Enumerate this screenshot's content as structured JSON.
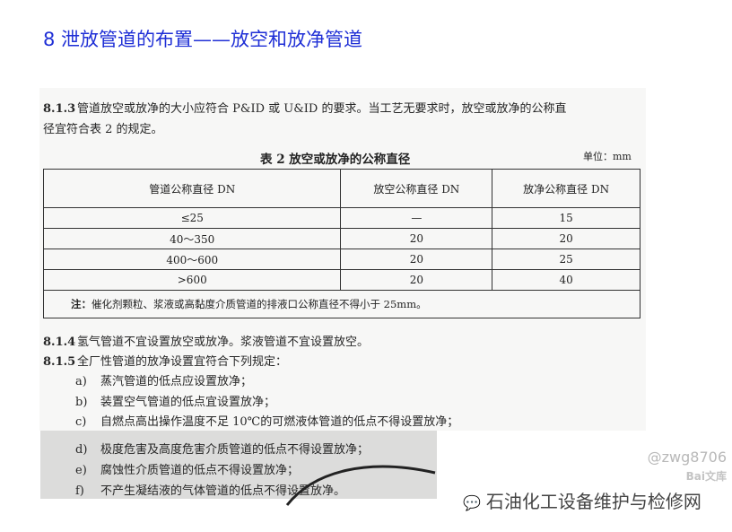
{
  "title": "8  泄放管道的布置——放空和放净管道",
  "clause_813": {
    "num": "8.1.3",
    "line1": "管道放空或放净的大小应符合 P&ID 或 U&ID 的要求。当工艺无要求时，放空或放净的公称直",
    "line2": "径宜符合表 2 的规定。"
  },
  "table": {
    "caption": "表 2   放空或放净的公称直径",
    "unit": "单位：mm",
    "headers": [
      "管道公称直径 DN",
      "放空公称直径 DN",
      "放净公称直径 DN"
    ],
    "rows": [
      [
        "≤25",
        "—",
        "15"
      ],
      [
        "40～350",
        "20",
        "20"
      ],
      [
        "400～600",
        "20",
        "25"
      ],
      [
        ">600",
        "20",
        "40"
      ]
    ],
    "note_label": "注：",
    "note": "催化剂颗粒、浆液或高黏度介质管道的排液口公称直径不得小于 25mm。"
  },
  "clause_814": {
    "num": "8.1.4",
    "text": "氢气管道不宜设置放空或放净。浆液管道不宜设置放空。"
  },
  "clause_815": {
    "num": "8.1.5",
    "text": "全厂性管道的放净设置宜符合下列规定："
  },
  "items": [
    {
      "label": "a)",
      "text": "蒸汽管道的低点应设置放净；"
    },
    {
      "label": "b)",
      "text": "装置空气管道的低点宜设置放净；"
    },
    {
      "label": "c)",
      "text": "自燃点高出操作温度不足 10℃的可燃液体管道的低点不得设置放净；"
    },
    {
      "label": "d)",
      "text": "极度危害及高度危害介质管道的低点不得设置放净；"
    },
    {
      "label": "e)",
      "text": "腐蚀性介质管道的低点不得设置放净；"
    },
    {
      "label": "f)",
      "text": "不产生凝结液的气体管道的低点不得设置放净。"
    }
  ],
  "watermark": {
    "user": "@zwg8706",
    "baidu": "Bai文库",
    "wechat": "石油化工设备维护与检修网",
    "wechat_icon": "wechat-icon"
  },
  "colors": {
    "title": "#1f2fd6"
  }
}
